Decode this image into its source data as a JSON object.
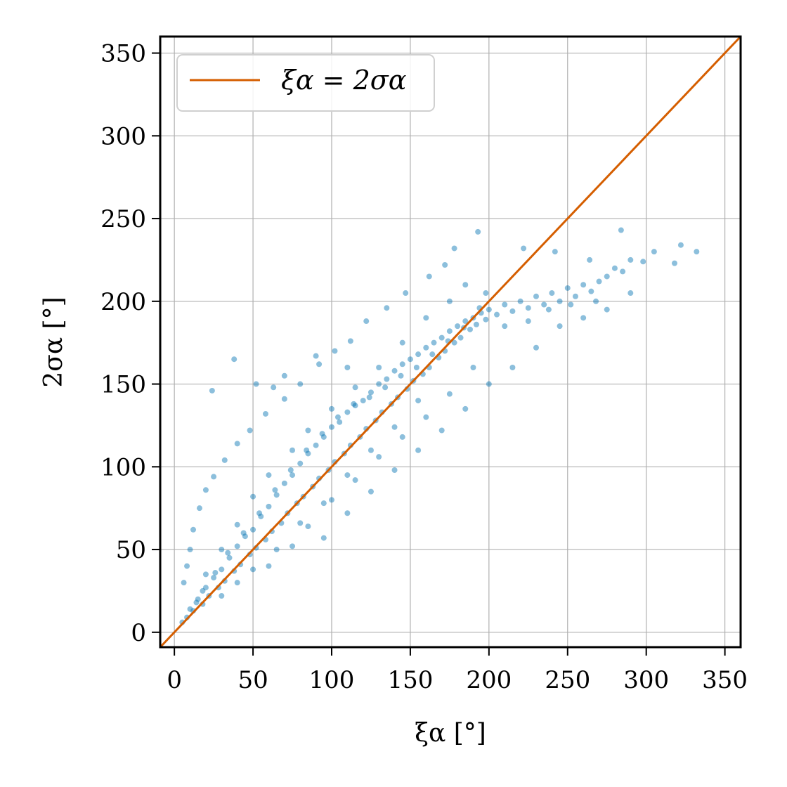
{
  "chart_data": {
    "type": "scatter",
    "title": "",
    "xlabel": "ξα [°]",
    "ylabel": "2σα [°]",
    "xlim": [
      -9,
      360
    ],
    "ylim": [
      -9,
      360
    ],
    "xticks": [
      0,
      50,
      100,
      150,
      200,
      250,
      300,
      350
    ],
    "yticks": [
      0,
      50,
      100,
      150,
      200,
      250,
      300,
      350
    ],
    "grid": true,
    "legend_position": "top-left",
    "colors": {
      "scatter": "#0072b2",
      "reference_line": "#d55e00"
    },
    "series": [
      {
        "kind": "reference-line",
        "name": "ξα = 2σα",
        "x": [
          -9,
          360
        ],
        "y": [
          -9,
          360
        ]
      },
      {
        "kind": "scatter",
        "points": [
          [
            5,
            6
          ],
          [
            8,
            9
          ],
          [
            10,
            14
          ],
          [
            12,
            13
          ],
          [
            15,
            20
          ],
          [
            18,
            17
          ],
          [
            20,
            27
          ],
          [
            22,
            22
          ],
          [
            25,
            33
          ],
          [
            28,
            27
          ],
          [
            30,
            38
          ],
          [
            32,
            31
          ],
          [
            35,
            45
          ],
          [
            38,
            37
          ],
          [
            40,
            52
          ],
          [
            42,
            41
          ],
          [
            45,
            58
          ],
          [
            48,
            47
          ],
          [
            50,
            62
          ],
          [
            52,
            51
          ],
          [
            55,
            70
          ],
          [
            58,
            56
          ],
          [
            60,
            76
          ],
          [
            62,
            61
          ],
          [
            65,
            83
          ],
          [
            68,
            66
          ],
          [
            70,
            90
          ],
          [
            72,
            72
          ],
          [
            75,
            95
          ],
          [
            78,
            78
          ],
          [
            80,
            102
          ],
          [
            82,
            82
          ],
          [
            85,
            108
          ],
          [
            88,
            88
          ],
          [
            90,
            113
          ],
          [
            92,
            93
          ],
          [
            95,
            118
          ],
          [
            98,
            98
          ],
          [
            100,
            124
          ],
          [
            102,
            103
          ],
          [
            105,
            127
          ],
          [
            108,
            108
          ],
          [
            110,
            133
          ],
          [
            112,
            113
          ],
          [
            115,
            137
          ],
          [
            118,
            118
          ],
          [
            120,
            140
          ],
          [
            122,
            123
          ],
          [
            125,
            145
          ],
          [
            128,
            128
          ],
          [
            130,
            150
          ],
          [
            132,
            133
          ],
          [
            135,
            153
          ],
          [
            138,
            138
          ],
          [
            140,
            158
          ],
          [
            142,
            142
          ],
          [
            145,
            162
          ],
          [
            148,
            147
          ],
          [
            150,
            165
          ],
          [
            152,
            152
          ],
          [
            155,
            168
          ],
          [
            158,
            156
          ],
          [
            160,
            172
          ],
          [
            162,
            160
          ],
          [
            165,
            175
          ],
          [
            168,
            166
          ],
          [
            170,
            178
          ],
          [
            172,
            170
          ],
          [
            175,
            182
          ],
          [
            178,
            175
          ],
          [
            180,
            185
          ],
          [
            182,
            178
          ],
          [
            185,
            188
          ],
          [
            188,
            183
          ],
          [
            190,
            190
          ],
          [
            192,
            186
          ],
          [
            195,
            193
          ],
          [
            198,
            189
          ],
          [
            200,
            195
          ],
          [
            205,
            192
          ],
          [
            210,
            198
          ],
          [
            215,
            194
          ],
          [
            220,
            200
          ],
          [
            225,
            196
          ],
          [
            230,
            203
          ],
          [
            235,
            198
          ],
          [
            240,
            205
          ],
          [
            245,
            200
          ],
          [
            250,
            208
          ],
          [
            255,
            203
          ],
          [
            260,
            210
          ],
          [
            265,
            206
          ],
          [
            270,
            212
          ],
          [
            275,
            215
          ],
          [
            280,
            220
          ],
          [
            285,
            218
          ],
          [
            290,
            225
          ],
          [
            298,
            224
          ],
          [
            305,
            230
          ],
          [
            322,
            234
          ],
          [
            332,
            230
          ],
          [
            318,
            223
          ],
          [
            284,
            243
          ],
          [
            264,
            225
          ],
          [
            242,
            230
          ],
          [
            222,
            232
          ],
          [
            193,
            242
          ],
          [
            178,
            232
          ],
          [
            172,
            222
          ],
          [
            162,
            215
          ],
          [
            147,
            205
          ],
          [
            135,
            196
          ],
          [
            122,
            188
          ],
          [
            112,
            176
          ],
          [
            102,
            170
          ],
          [
            92,
            162
          ],
          [
            80,
            150
          ],
          [
            70,
            141
          ],
          [
            58,
            132
          ],
          [
            48,
            122
          ],
          [
            40,
            114
          ],
          [
            32,
            104
          ],
          [
            25,
            94
          ],
          [
            20,
            86
          ],
          [
            16,
            75
          ],
          [
            12,
            62
          ],
          [
            10,
            50
          ],
          [
            8,
            40
          ],
          [
            6,
            30
          ],
          [
            38,
            165
          ],
          [
            24,
            146
          ],
          [
            52,
            150
          ],
          [
            63,
            148
          ],
          [
            70,
            155
          ],
          [
            90,
            167
          ],
          [
            110,
            160
          ],
          [
            95,
            57
          ],
          [
            110,
            72
          ],
          [
            125,
            85
          ],
          [
            140,
            98
          ],
          [
            155,
            110
          ],
          [
            170,
            122
          ],
          [
            185,
            135
          ],
          [
            200,
            150
          ],
          [
            215,
            160
          ],
          [
            230,
            172
          ],
          [
            245,
            185
          ],
          [
            260,
            190
          ],
          [
            275,
            195
          ],
          [
            290,
            205
          ],
          [
            60,
            40
          ],
          [
            75,
            52
          ],
          [
            85,
            64
          ],
          [
            100,
            80
          ],
          [
            115,
            92
          ],
          [
            130,
            106
          ],
          [
            145,
            118
          ],
          [
            160,
            130
          ],
          [
            175,
            144
          ],
          [
            190,
            160
          ],
          [
            30,
            22
          ],
          [
            40,
            30
          ],
          [
            50,
            38
          ],
          [
            65,
            50
          ],
          [
            80,
            66
          ],
          [
            95,
            78
          ],
          [
            110,
            95
          ],
          [
            125,
            110
          ],
          [
            140,
            124
          ],
          [
            155,
            140
          ],
          [
            20,
            35
          ],
          [
            30,
            50
          ],
          [
            40,
            65
          ],
          [
            50,
            82
          ],
          [
            60,
            95
          ],
          [
            75,
            110
          ],
          [
            85,
            122
          ],
          [
            100,
            135
          ],
          [
            115,
            148
          ],
          [
            130,
            160
          ],
          [
            145,
            175
          ],
          [
            160,
            190
          ],
          [
            175,
            200
          ],
          [
            185,
            210
          ],
          [
            198,
            205
          ],
          [
            210,
            185
          ],
          [
            225,
            188
          ],
          [
            238,
            195
          ],
          [
            252,
            198
          ],
          [
            268,
            200
          ],
          [
            14,
            18
          ],
          [
            18,
            25
          ],
          [
            26,
            36
          ],
          [
            34,
            48
          ],
          [
            44,
            60
          ],
          [
            54,
            72
          ],
          [
            64,
            86
          ],
          [
            74,
            98
          ],
          [
            84,
            110
          ],
          [
            94,
            120
          ],
          [
            104,
            130
          ],
          [
            114,
            138
          ],
          [
            124,
            142
          ],
          [
            134,
            148
          ],
          [
            144,
            155
          ],
          [
            154,
            160
          ],
          [
            164,
            168
          ],
          [
            174,
            176
          ],
          [
            184,
            184
          ],
          [
            194,
            196
          ]
        ]
      }
    ]
  }
}
